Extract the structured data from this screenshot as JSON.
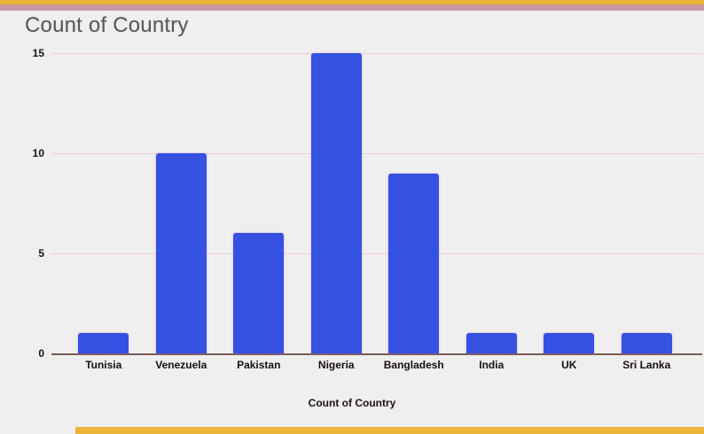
{
  "page": {
    "background": "#efefef",
    "top_stripe_yellow": "#e9b437",
    "top_stripe_rose": "#c998a2",
    "bottom_stripe_yellow": "#e9b437"
  },
  "chart_data": {
    "type": "bar",
    "title": "Count of Country",
    "categories": [
      "Tunisia",
      "Venezuela",
      "Pakistan",
      "Nigeria",
      "Bangladesh",
      "India",
      "UK",
      "Sri Lanka"
    ],
    "values": [
      1,
      10,
      6,
      15,
      9,
      1,
      1,
      1
    ],
    "xlabel": "Count of Country",
    "ylabel": "",
    "ylim": [
      0,
      15
    ],
    "yticks": [
      0,
      5,
      10,
      15
    ],
    "bar_color": "#3551e1",
    "gridline_color": "#f4c9d6",
    "axis_line_color": "#7a5a58",
    "grid": "horizontal",
    "legend_position": "none"
  }
}
